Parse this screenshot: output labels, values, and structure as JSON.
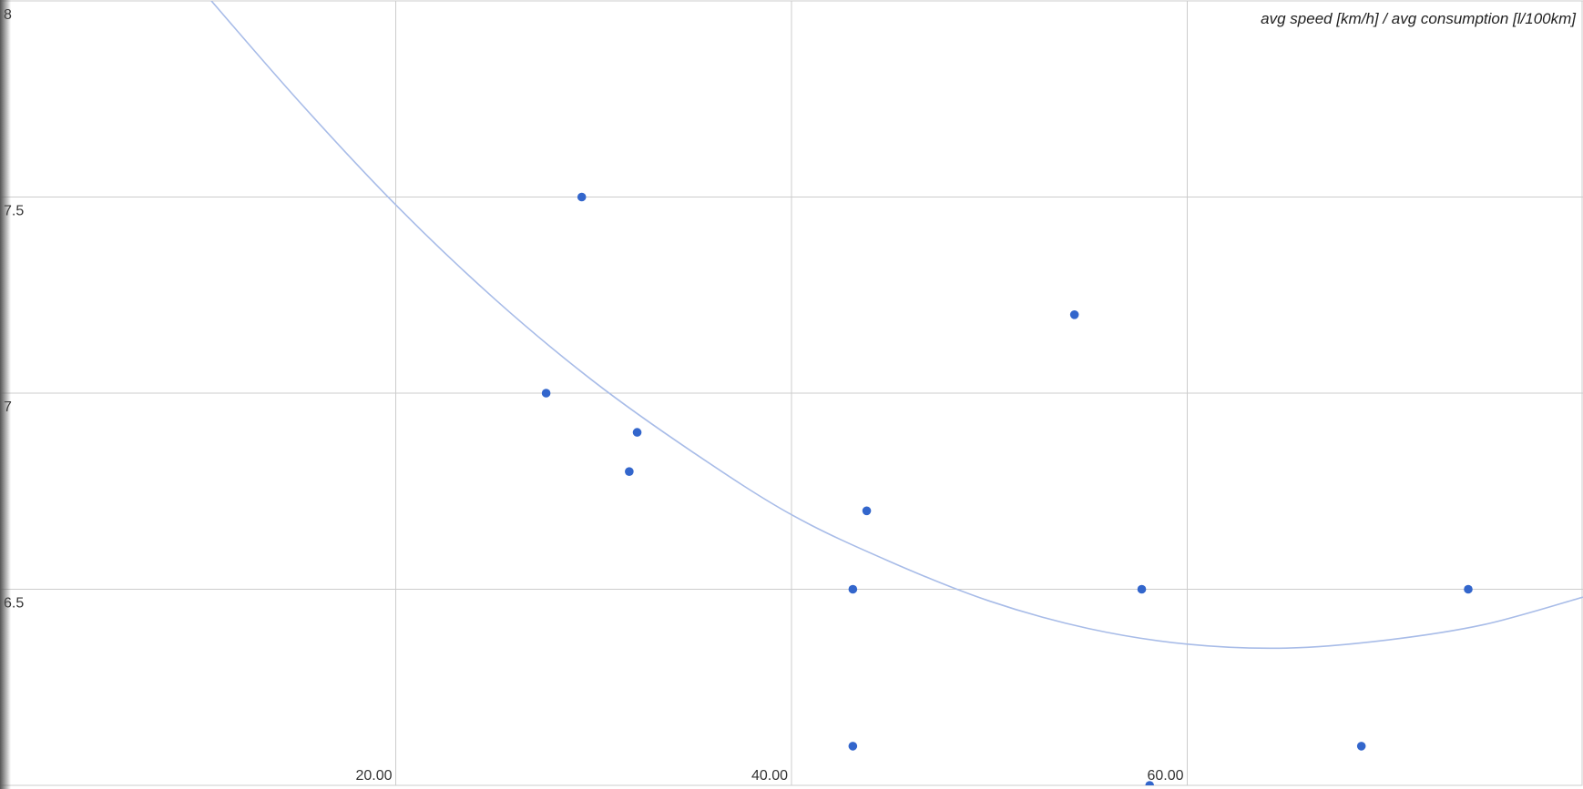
{
  "chart_data": {
    "type": "scatter",
    "title": "avg speed [km/h] / avg consumption [l/100km]",
    "series": [
      {
        "name": "avg consumption",
        "color": "#3366cc",
        "x": [
          29.4,
          27.6,
          32.2,
          31.8,
          43.8,
          43.1,
          54.3,
          57.7,
          74.2,
          43.1,
          68.8,
          58.1
        ],
        "values": [
          7.5,
          7.0,
          6.9,
          6.8,
          6.7,
          6.5,
          7.2,
          6.5,
          6.5,
          6.1,
          6.1,
          6.0
        ]
      }
    ],
    "trendline": {
      "color": "#a8bce8",
      "x": [
        10,
        15,
        20,
        25,
        30,
        35,
        40,
        45,
        50,
        55,
        60,
        65,
        70,
        75,
        80
      ],
      "values": [
        8.04,
        7.75,
        7.48,
        7.24,
        7.03,
        6.85,
        6.69,
        6.57,
        6.47,
        6.4,
        6.36,
        6.35,
        6.37,
        6.41,
        6.48
      ]
    },
    "xlim": [
      0,
      80
    ],
    "ylim": [
      6,
      8
    ],
    "xticks": [
      {
        "value": 20,
        "label": "20.00"
      },
      {
        "value": 40,
        "label": "40.00"
      },
      {
        "value": 60,
        "label": "60.00"
      }
    ],
    "yticks": [
      6.5,
      7,
      7.5,
      8
    ],
    "grid": true
  }
}
